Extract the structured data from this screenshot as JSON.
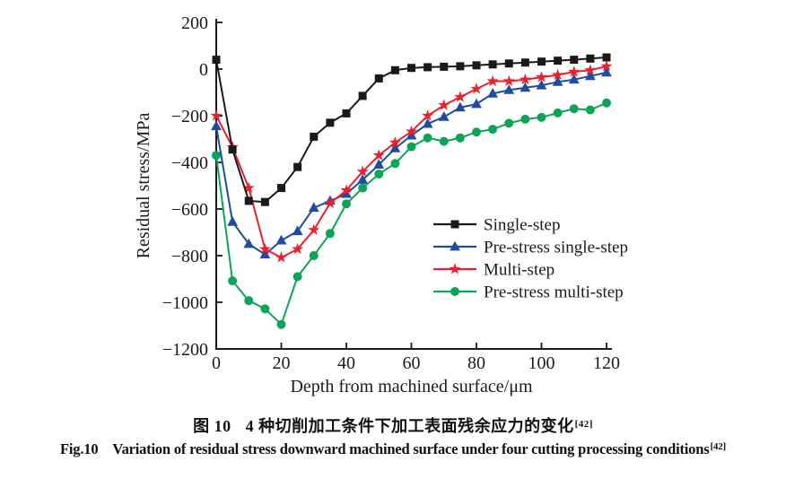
{
  "figure": {
    "captions": {
      "zh": {
        "fig_label": "图 10",
        "text": "4 种切削加工条件下加工表面残余应力的变化",
        "ref": "[42]"
      },
      "en": {
        "fig_label": "Fig.10",
        "text": "Variation of residual stress downward machined surface under four cutting processing conditions",
        "ref": "[42]"
      }
    }
  },
  "chart_data": {
    "type": "line",
    "xlabel": "Depth from machined surface/μm",
    "ylabel": "Residual stress/MPa",
    "xlim": [
      0,
      120
    ],
    "ylim": [
      -1200,
      200
    ],
    "x_ticks": [
      0,
      20,
      40,
      60,
      80,
      100,
      120
    ],
    "y_ticks": [
      200,
      0,
      -200,
      -400,
      -600,
      -800,
      -1000,
      -1200
    ],
    "grid": false,
    "legend_position": "inside-right",
    "x": [
      0,
      5,
      10,
      15,
      20,
      25,
      30,
      35,
      40,
      45,
      50,
      55,
      60,
      65,
      70,
      75,
      80,
      85,
      90,
      95,
      100,
      105,
      110,
      115,
      120
    ],
    "series": [
      {
        "name": "Single-step",
        "marker": "square",
        "color": "#1a1a1a",
        "values": [
          40,
          -345,
          -565,
          -570,
          -510,
          -420,
          -290,
          -230,
          -190,
          -115,
          -40,
          -5,
          5,
          8,
          10,
          12,
          16,
          20,
          24,
          28,
          32,
          36,
          40,
          45,
          50
        ]
      },
      {
        "name": "Pre-stress single-step",
        "marker": "triangle",
        "color": "#1f4ca3",
        "values": [
          -245,
          -655,
          -750,
          -795,
          -735,
          -695,
          -595,
          -565,
          -535,
          -475,
          -410,
          -340,
          -285,
          -235,
          -205,
          -165,
          -150,
          -105,
          -90,
          -80,
          -70,
          -55,
          -45,
          -30,
          -15
        ]
      },
      {
        "name": "Multi-step",
        "marker": "star",
        "color": "#e8212e",
        "values": [
          -200,
          -335,
          -510,
          -772,
          -808,
          -772,
          -690,
          -575,
          -520,
          -440,
          -370,
          -315,
          -268,
          -200,
          -155,
          -120,
          -85,
          -52,
          -52,
          -45,
          -35,
          -25,
          -12,
          -5,
          12
        ]
      },
      {
        "name": "Pre-stress multi-step",
        "marker": "circle",
        "color": "#0ba557",
        "values": [
          -370,
          -908,
          -993,
          -1028,
          -1095,
          -890,
          -800,
          -705,
          -578,
          -510,
          -450,
          -405,
          -333,
          -295,
          -310,
          -295,
          -270,
          -258,
          -232,
          -215,
          -207,
          -188,
          -170,
          -175,
          -145
        ]
      }
    ]
  }
}
